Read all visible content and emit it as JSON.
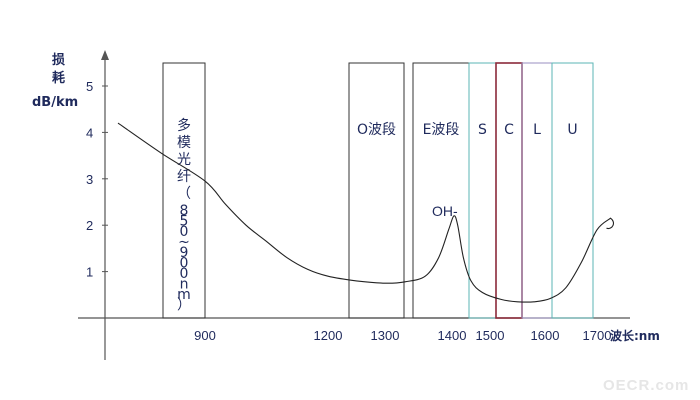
{
  "chart_data": {
    "type": "line",
    "title": "",
    "ylabel_top": "损",
    "ylabel_mid": "耗",
    "ylabel_unit": "dB/km",
    "xlabel": "波长:nm",
    "y_ticks": [
      "1",
      "2",
      "3",
      "4",
      "5"
    ],
    "x_ticks": [
      {
        "label": "900",
        "x": 900
      },
      {
        "label": "1200",
        "x": 1200
      },
      {
        "label": "1300",
        "x": 1300
      },
      {
        "label": "1400",
        "x": 1400
      },
      {
        "label": "1500",
        "x": 1500
      },
      {
        "label": "1600",
        "x": 1600
      },
      {
        "label": "1700",
        "x": 1700
      }
    ],
    "bands": [
      {
        "name": "multimode",
        "label": "多模光纤（850~900nm）",
        "x0": 850,
        "x1": 900,
        "color": "#333333"
      },
      {
        "name": "o-band",
        "label": "O波段",
        "x0": 1260,
        "x1": 1360,
        "color": "#333333"
      },
      {
        "name": "e-band",
        "label": "E波段",
        "x0": 1360,
        "x1": 1460,
        "color": "#333333"
      },
      {
        "name": "s-band",
        "label": "S",
        "x0": 1460,
        "x1": 1530,
        "color": "#5bb5b5"
      },
      {
        "name": "c-band",
        "label": "C",
        "x0": 1530,
        "x1": 1565,
        "color": "#8b2a3a"
      },
      {
        "name": "l-band",
        "label": "L",
        "x0": 1565,
        "x1": 1625,
        "color": "#9a8fc0"
      },
      {
        "name": "u-band",
        "label": "U",
        "x0": 1625,
        "x1": 1675,
        "color": "#5bb5b5"
      }
    ],
    "annotations": [
      {
        "text": "OH-"
      }
    ],
    "series": [
      {
        "values_xy": [
          [
            800,
            4.2
          ],
          [
            850,
            3.55
          ],
          [
            900,
            2.95
          ],
          [
            950,
            2.45
          ],
          [
            1000,
            2.0
          ],
          [
            1050,
            1.65
          ],
          [
            1100,
            1.3
          ],
          [
            1150,
            1.05
          ],
          [
            1200,
            0.9
          ],
          [
            1250,
            0.8
          ],
          [
            1300,
            0.75
          ],
          [
            1330,
            0.78
          ],
          [
            1360,
            0.9
          ],
          [
            1380,
            1.3
          ],
          [
            1395,
            1.9
          ],
          [
            1405,
            2.2
          ],
          [
            1415,
            2.0
          ],
          [
            1430,
            1.3
          ],
          [
            1450,
            0.8
          ],
          [
            1480,
            0.55
          ],
          [
            1520,
            0.4
          ],
          [
            1550,
            0.35
          ],
          [
            1580,
            0.35
          ],
          [
            1610,
            0.42
          ],
          [
            1640,
            0.65
          ],
          [
            1670,
            1.2
          ],
          [
            1700,
            1.9
          ],
          [
            1715,
            2.15
          ]
        ]
      }
    ]
  },
  "watermark": "OECR.com"
}
